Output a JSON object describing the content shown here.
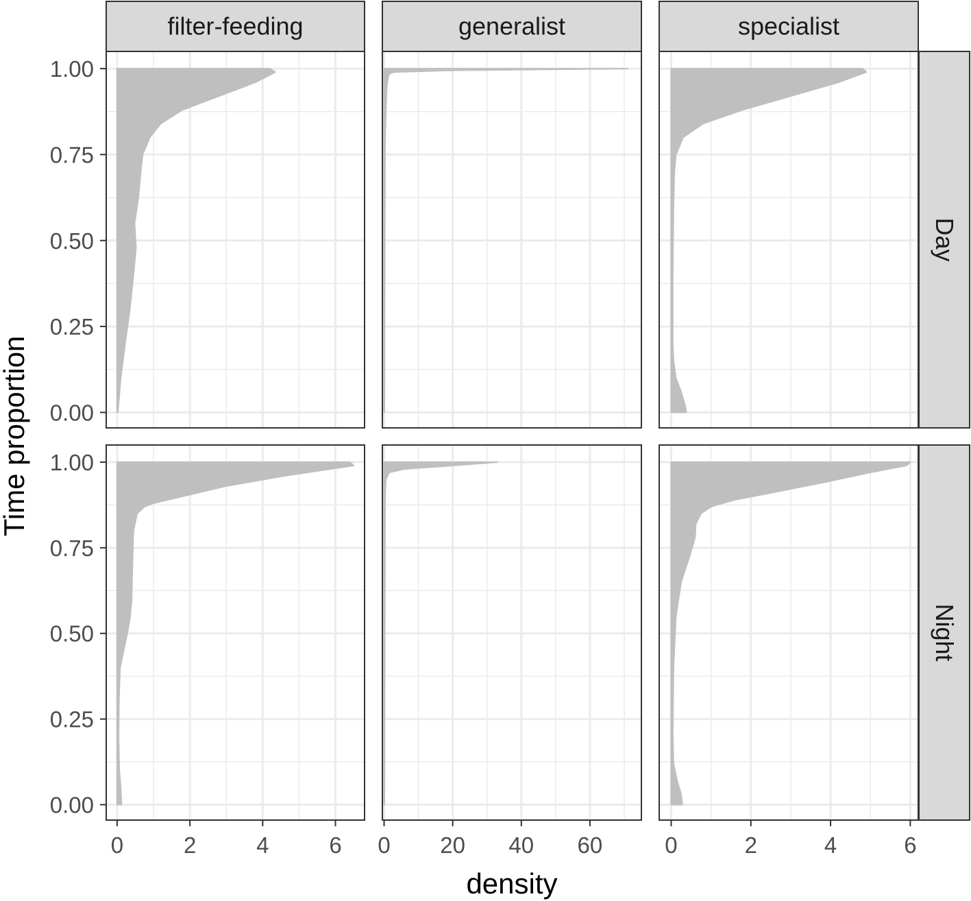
{
  "chart_data": {
    "type": "area",
    "geom": "density (violin half, horizontal)",
    "xlabel": "density",
    "ylabel": "Time proportion",
    "ylim": [
      0,
      1
    ],
    "y_ticks": [
      "0.00",
      "0.25",
      "0.50",
      "0.75",
      "1.00"
    ],
    "y_tick_values": [
      0,
      0.25,
      0.5,
      0.75,
      1.0
    ],
    "grid": true,
    "fill_color": "#bfbfbf",
    "strip_fill": "#d9d9d9",
    "columns": [
      {
        "label": "filter-feeding",
        "xlim": [
          -0.3,
          6.8
        ],
        "x_ticks": [
          0,
          2,
          4,
          6
        ],
        "x_tick_labels": [
          "0",
          "2",
          "4",
          "6"
        ]
      },
      {
        "label": "generalist",
        "xlim": [
          -0.5,
          75
        ],
        "x_ticks": [
          0,
          20,
          40,
          60
        ],
        "x_tick_labels": [
          "0",
          "20",
          "40",
          "60"
        ]
      },
      {
        "label": "specialist",
        "xlim": [
          -0.3,
          6.2
        ],
        "x_ticks": [
          0,
          2,
          4,
          6
        ],
        "x_tick_labels": [
          "0",
          "2",
          "4",
          "6"
        ]
      }
    ],
    "rows": [
      {
        "label": "Day"
      },
      {
        "label": "Night"
      }
    ],
    "panels": [
      {
        "row": "Day",
        "column": "filter-feeding",
        "y": [
          0.0,
          0.1,
          0.2,
          0.3,
          0.4,
          0.48,
          0.55,
          0.62,
          0.7,
          0.75,
          0.8,
          0.84,
          0.88,
          0.92,
          0.96,
          0.99,
          1.0
        ],
        "density": [
          0.02,
          0.1,
          0.22,
          0.35,
          0.45,
          0.52,
          0.48,
          0.58,
          0.65,
          0.7,
          0.9,
          1.2,
          1.8,
          2.8,
          3.8,
          4.35,
          4.2
        ]
      },
      {
        "row": "Day",
        "column": "generalist",
        "y": [
          0.0,
          0.5,
          0.8,
          0.9,
          0.95,
          0.975,
          0.985,
          0.99,
          0.995,
          1.0
        ],
        "density": [
          0.1,
          0.2,
          0.3,
          0.6,
          0.8,
          1.2,
          1.5,
          3.0,
          20.0,
          71.0
        ]
      },
      {
        "row": "Day",
        "column": "specialist",
        "y": [
          0.0,
          0.02,
          0.06,
          0.1,
          0.15,
          0.2,
          0.4,
          0.6,
          0.7,
          0.75,
          0.8,
          0.84,
          0.88,
          0.92,
          0.96,
          0.99,
          1.0
        ],
        "density": [
          0.38,
          0.35,
          0.25,
          0.12,
          0.06,
          0.04,
          0.04,
          0.06,
          0.08,
          0.12,
          0.3,
          0.8,
          1.8,
          3.0,
          4.2,
          4.9,
          4.8
        ]
      },
      {
        "row": "Night",
        "column": "filter-feeding",
        "y": [
          0.0,
          0.05,
          0.1,
          0.2,
          0.3,
          0.4,
          0.45,
          0.5,
          0.55,
          0.6,
          0.7,
          0.8,
          0.85,
          0.87,
          0.88,
          0.9,
          0.93,
          0.96,
          0.99,
          1.0
        ],
        "density": [
          0.12,
          0.1,
          0.06,
          0.04,
          0.05,
          0.08,
          0.18,
          0.28,
          0.36,
          0.4,
          0.42,
          0.45,
          0.55,
          0.75,
          1.0,
          1.8,
          3.0,
          4.6,
          6.5,
          6.4
        ]
      },
      {
        "row": "Night",
        "column": "generalist",
        "y": [
          0.0,
          0.5,
          0.9,
          0.95,
          0.97,
          0.98,
          0.99,
          1.0
        ],
        "density": [
          0.1,
          0.2,
          0.3,
          0.5,
          1.5,
          6.0,
          20.0,
          33.0
        ]
      },
      {
        "row": "Night",
        "column": "specialist",
        "y": [
          0.0,
          0.03,
          0.07,
          0.12,
          0.2,
          0.4,
          0.55,
          0.65,
          0.72,
          0.78,
          0.82,
          0.85,
          0.87,
          0.89,
          0.91,
          0.94,
          0.97,
          0.99,
          1.0
        ],
        "density": [
          0.28,
          0.25,
          0.15,
          0.06,
          0.04,
          0.06,
          0.12,
          0.25,
          0.45,
          0.6,
          0.62,
          0.75,
          1.0,
          1.6,
          2.5,
          3.8,
          5.0,
          5.9,
          6.0
        ]
      }
    ]
  }
}
